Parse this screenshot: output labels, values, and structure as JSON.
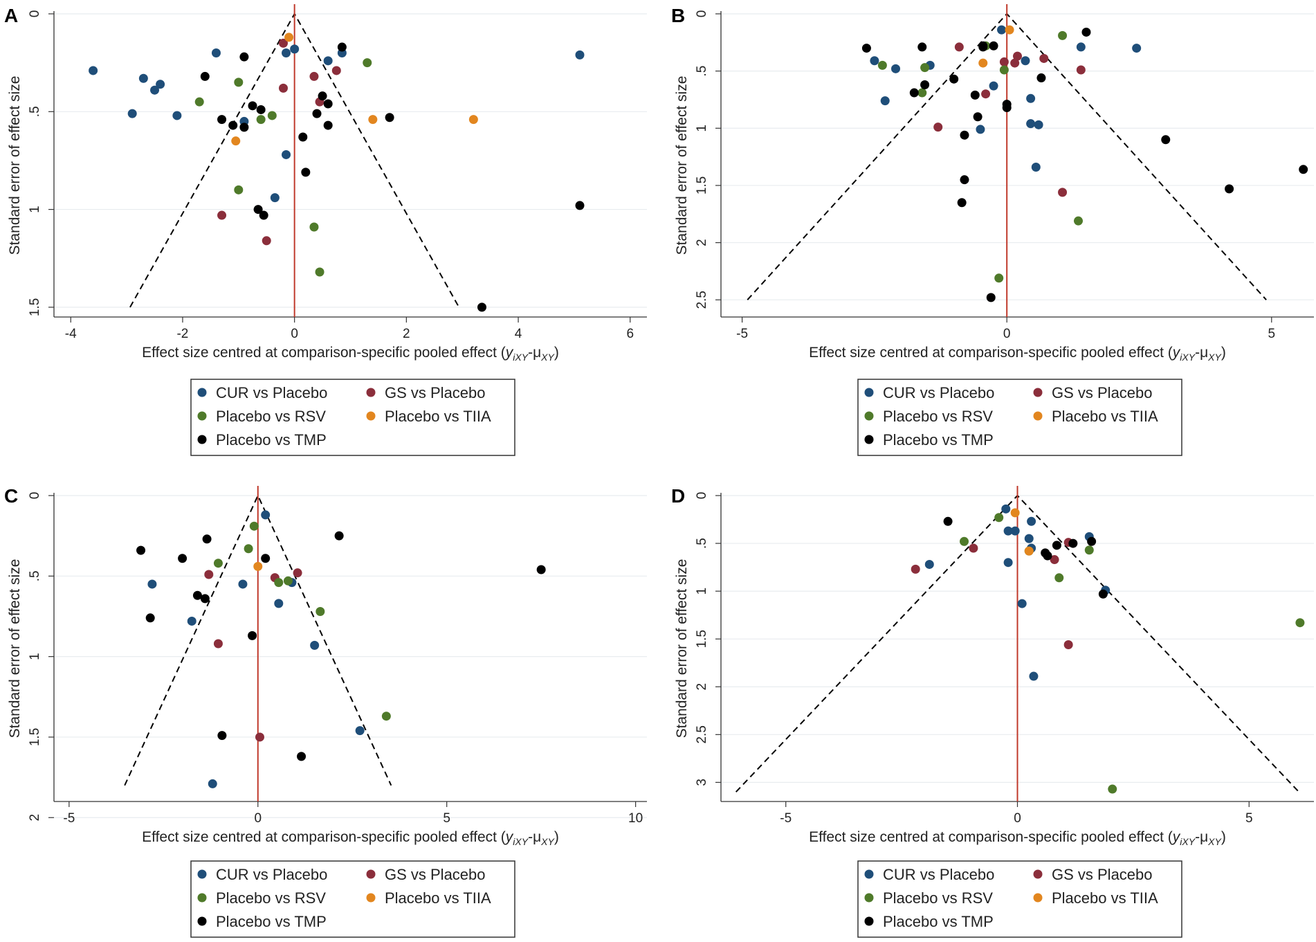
{
  "figure": {
    "colors": {
      "CUR vs Placebo": "#1f4e79",
      "GS vs Placebo": "#8b2e3b",
      "Placebo vs RSV": "#4f7a2a",
      "Placebo vs TIIA": "#e2861f",
      "Placebo vs TMP": "#000000",
      "null_line": "#c0392b",
      "funnel": "#000000"
    }
  },
  "chart_data": [
    {
      "panel": "A",
      "type": "scatter",
      "xlabel_main": "Effect size centred at comparison-specific pooled effect (",
      "xlabel_sym1": "y",
      "xlabel_sub1": "iXY",
      "xlabel_mid": "-μ",
      "xlabel_sub2": "XY",
      "xlabel_end": ")",
      "ylabel": "Standard error of effect size",
      "xlim": [
        -4.3,
        6.3
      ],
      "ylim": [
        0,
        1.55
      ],
      "xticks": [
        -4,
        -2,
        0,
        2,
        4,
        6
      ],
      "xtick_labels": [
        "-4",
        "-2",
        "0",
        "2",
        "4",
        "6"
      ],
      "yticks": [
        0,
        0.5,
        1,
        1.5
      ],
      "ytick_labels": [
        "0",
        ".5",
        "1",
        "1.5"
      ],
      "funnel_se_max": 1.5,
      "legend": [
        "CUR vs Placebo",
        "GS vs Placebo",
        "Placebo vs RSV",
        "Placebo vs TIIA",
        "Placebo vs TMP"
      ],
      "series": [
        {
          "name": "CUR vs Placebo",
          "points": [
            [
              -3.6,
              0.29
            ],
            [
              -2.7,
              0.33
            ],
            [
              -2.4,
              0.36
            ],
            [
              -2.5,
              0.39
            ],
            [
              -2.9,
              0.51
            ],
            [
              -2.1,
              0.52
            ],
            [
              -1.4,
              0.2
            ],
            [
              -0.9,
              0.55
            ],
            [
              -0.15,
              0.2
            ],
            [
              0.0,
              0.18
            ],
            [
              0.6,
              0.24
            ],
            [
              0.85,
              0.2
            ],
            [
              -0.15,
              0.72
            ],
            [
              -0.35,
              0.94
            ],
            [
              5.1,
              0.21
            ]
          ]
        },
        {
          "name": "GS vs Placebo",
          "points": [
            [
              -0.2,
              0.15
            ],
            [
              -0.2,
              0.38
            ],
            [
              0.35,
              0.32
            ],
            [
              0.45,
              0.45
            ],
            [
              0.75,
              0.29
            ],
            [
              -1.3,
              1.03
            ],
            [
              -0.5,
              1.16
            ]
          ]
        },
        {
          "name": "Placebo vs RSV",
          "points": [
            [
              -1.7,
              0.45
            ],
            [
              -1.0,
              0.35
            ],
            [
              -0.6,
              0.54
            ],
            [
              -0.4,
              0.52
            ],
            [
              1.3,
              0.25
            ],
            [
              -1.0,
              0.9
            ],
            [
              0.35,
              1.09
            ],
            [
              0.45,
              1.32
            ]
          ]
        },
        {
          "name": "Placebo vs TIIA",
          "points": [
            [
              -0.1,
              0.12
            ],
            [
              -1.05,
              0.65
            ],
            [
              1.4,
              0.54
            ],
            [
              3.2,
              0.54
            ]
          ]
        },
        {
          "name": "Placebo vs TMP",
          "points": [
            [
              -0.9,
              0.22
            ],
            [
              -1.6,
              0.32
            ],
            [
              -1.3,
              0.54
            ],
            [
              -1.1,
              0.57
            ],
            [
              -0.9,
              0.58
            ],
            [
              -0.75,
              0.47
            ],
            [
              -0.6,
              0.49
            ],
            [
              0.85,
              0.17
            ],
            [
              0.5,
              0.42
            ],
            [
              0.6,
              0.46
            ],
            [
              0.4,
              0.51
            ],
            [
              0.6,
              0.57
            ],
            [
              1.7,
              0.53
            ],
            [
              0.15,
              0.63
            ],
            [
              0.2,
              0.81
            ],
            [
              -0.65,
              1.0
            ],
            [
              -0.55,
              1.03
            ],
            [
              5.1,
              0.98
            ],
            [
              3.35,
              1.5
            ]
          ]
        }
      ]
    },
    {
      "panel": "B",
      "type": "scatter",
      "xlabel_main": "Effect size centred at comparison-specific pooled effect (",
      "xlabel_sym1": "y",
      "xlabel_sub1": "iXY",
      "xlabel_mid": "-μ",
      "xlabel_sub2": "XY",
      "xlabel_end": ")",
      "ylabel": "Standard error of effect size",
      "xlim": [
        -5.4,
        5.8
      ],
      "ylim": [
        0,
        2.65
      ],
      "xticks": [
        -5,
        0,
        5
      ],
      "xtick_labels": [
        "-5",
        "0",
        "5"
      ],
      "yticks": [
        0,
        0.5,
        1,
        1.5,
        2,
        2.5
      ],
      "ytick_labels": [
        "0",
        ".5",
        "1",
        "1.5",
        "2",
        "2.5"
      ],
      "funnel_se_max": 2.5,
      "legend": [
        "CUR vs Placebo",
        "GS vs Placebo",
        "Placebo vs RSV",
        "Placebo vs TIIA",
        "Placebo vs TMP"
      ],
      "series": [
        {
          "name": "CUR vs Placebo",
          "points": [
            [
              -2.5,
              0.41
            ],
            [
              -2.1,
              0.48
            ],
            [
              -1.45,
              0.45
            ],
            [
              -2.3,
              0.76
            ],
            [
              -0.1,
              0.14
            ],
            [
              -0.25,
              0.63
            ],
            [
              -0.5,
              1.01
            ],
            [
              0.35,
              0.41
            ],
            [
              0.45,
              0.74
            ],
            [
              0.45,
              0.96
            ],
            [
              0.6,
              0.97
            ],
            [
              0.55,
              1.34
            ],
            [
              1.4,
              0.29
            ],
            [
              2.45,
              0.3
            ]
          ]
        },
        {
          "name": "GS vs Placebo",
          "points": [
            [
              -0.9,
              0.29
            ],
            [
              0.2,
              0.37
            ],
            [
              0.15,
              0.43
            ],
            [
              -0.05,
              0.42
            ],
            [
              0.7,
              0.39
            ],
            [
              1.4,
              0.49
            ],
            [
              -0.4,
              0.7
            ],
            [
              -1.3,
              0.99
            ],
            [
              1.05,
              1.56
            ]
          ]
        },
        {
          "name": "Placebo vs RSV",
          "points": [
            [
              -2.35,
              0.45
            ],
            [
              -0.4,
              0.28
            ],
            [
              -1.55,
              0.47
            ],
            [
              -1.6,
              0.69
            ],
            [
              1.05,
              0.19
            ],
            [
              -0.05,
              0.49
            ],
            [
              1.35,
              1.81
            ],
            [
              -0.15,
              2.31
            ]
          ]
        },
        {
          "name": "Placebo vs TIIA",
          "points": [
            [
              0.05,
              0.14
            ],
            [
              -0.45,
              0.43
            ]
          ]
        },
        {
          "name": "Placebo vs TMP",
          "points": [
            [
              -2.65,
              0.3
            ],
            [
              -1.6,
              0.29
            ],
            [
              -0.25,
              0.28
            ],
            [
              -0.45,
              0.29
            ],
            [
              -1.55,
              0.62
            ],
            [
              -1.0,
              0.57
            ],
            [
              -1.75,
              0.69
            ],
            [
              -0.6,
              0.71
            ],
            [
              -0.55,
              0.9
            ],
            [
              -0.45,
              0.28
            ],
            [
              0.0,
              0.82
            ],
            [
              -0.8,
              1.06
            ],
            [
              0.0,
              0.79
            ],
            [
              0.65,
              0.56
            ],
            [
              1.5,
              0.16
            ],
            [
              3.0,
              1.1
            ],
            [
              -0.8,
              1.45
            ],
            [
              -0.85,
              1.65
            ],
            [
              4.2,
              1.53
            ],
            [
              5.6,
              1.36
            ],
            [
              -0.3,
              2.48
            ]
          ]
        }
      ]
    },
    {
      "panel": "C",
      "type": "scatter",
      "xlabel_main": "Effect size centred at comparison-specific pooled effect (",
      "xlabel_sym1": "y",
      "xlabel_sub1": "iXY",
      "xlabel_mid": "-μ",
      "xlabel_sub2": "XY",
      "xlabel_end": ")",
      "ylabel": "Standard error of effect size",
      "xlim": [
        -5.4,
        10.3
      ],
      "ylim": [
        0,
        1.9
      ],
      "xticks": [
        -5,
        0,
        5,
        10
      ],
      "xtick_labels": [
        "-5",
        "0",
        "5",
        "10"
      ],
      "yticks": [
        0,
        0.5,
        1,
        1.5,
        2
      ],
      "ytick_labels": [
        "0",
        ".5",
        "1",
        "1.5",
        "2"
      ],
      "funnel_se_max": 1.8,
      "legend": [
        "CUR vs Placebo",
        "GS vs Placebo",
        "Placebo vs RSV",
        "Placebo vs TIIA",
        "Placebo vs TMP"
      ],
      "series": [
        {
          "name": "CUR vs Placebo",
          "points": [
            [
              0.2,
              0.12
            ],
            [
              -2.8,
              0.55
            ],
            [
              -0.4,
              0.55
            ],
            [
              0.9,
              0.54
            ],
            [
              0.55,
              0.67
            ],
            [
              -1.75,
              0.78
            ],
            [
              1.5,
              0.93
            ],
            [
              2.7,
              1.46
            ],
            [
              -1.2,
              1.79
            ]
          ]
        },
        {
          "name": "GS vs Placebo",
          "points": [
            [
              -1.3,
              0.49
            ],
            [
              -1.05,
              0.92
            ],
            [
              0.45,
              0.51
            ],
            [
              1.05,
              0.48
            ],
            [
              0.05,
              1.5
            ]
          ]
        },
        {
          "name": "Placebo vs RSV",
          "points": [
            [
              -0.1,
              0.19
            ],
            [
              -0.25,
              0.33
            ],
            [
              -1.05,
              0.42
            ],
            [
              0.55,
              0.54
            ],
            [
              0.8,
              0.53
            ],
            [
              1.65,
              0.72
            ],
            [
              3.4,
              1.37
            ]
          ]
        },
        {
          "name": "Placebo vs TIIA",
          "points": [
            [
              0.0,
              0.44
            ]
          ]
        },
        {
          "name": "Placebo vs TMP",
          "points": [
            [
              -3.1,
              0.34
            ],
            [
              -1.35,
              0.27
            ],
            [
              -2.0,
              0.39
            ],
            [
              -1.6,
              0.62
            ],
            [
              -1.4,
              0.64
            ],
            [
              -2.85,
              0.76
            ],
            [
              0.2,
              0.39
            ],
            [
              2.15,
              0.25
            ],
            [
              7.5,
              0.46
            ],
            [
              -0.15,
              0.87
            ],
            [
              -0.95,
              1.49
            ],
            [
              1.15,
              1.62
            ]
          ]
        }
      ]
    },
    {
      "panel": "D",
      "type": "scatter",
      "xlabel_main": "Effect size centred at comparison-specific pooled effect (",
      "xlabel_sym1": "y",
      "xlabel_sub1": "iXY",
      "xlabel_mid": "-μ",
      "xlabel_sub2": "XY",
      "xlabel_end": ")",
      "ylabel": "Standard error of effect size",
      "xlim": [
        -6.4,
        6.4
      ],
      "ylim": [
        0,
        3.2
      ],
      "xticks": [
        -5,
        0,
        5
      ],
      "xtick_labels": [
        "-5",
        "0",
        "5"
      ],
      "yticks": [
        0,
        0.5,
        1,
        1.5,
        2,
        2.5,
        3
      ],
      "ytick_labels": [
        "0",
        ".5",
        "1",
        "1.5",
        "2",
        "2.5",
        "3"
      ],
      "funnel_se_max": 3.1,
      "legend": [
        "CUR vs Placebo",
        "GS vs Placebo",
        "Placebo vs RSV",
        "Placebo vs TIIA",
        "Placebo vs TMP"
      ],
      "series": [
        {
          "name": "CUR vs Placebo",
          "points": [
            [
              -0.25,
              0.14
            ],
            [
              -0.2,
              0.37
            ],
            [
              -0.05,
              0.37
            ],
            [
              0.3,
              0.27
            ],
            [
              0.25,
              0.45
            ],
            [
              0.3,
              0.55
            ],
            [
              -0.2,
              0.7
            ],
            [
              0.1,
              1.13
            ],
            [
              1.55,
              0.43
            ],
            [
              1.9,
              0.99
            ],
            [
              -1.9,
              0.72
            ],
            [
              0.35,
              1.89
            ]
          ]
        },
        {
          "name": "GS vs Placebo",
          "points": [
            [
              -2.2,
              0.77
            ],
            [
              -0.95,
              0.55
            ],
            [
              0.8,
              0.67
            ],
            [
              1.1,
              0.49
            ],
            [
              1.1,
              1.56
            ]
          ]
        },
        {
          "name": "Placebo vs RSV",
          "points": [
            [
              -0.4,
              0.23
            ],
            [
              -1.15,
              0.48
            ],
            [
              0.25,
              0.58
            ],
            [
              0.9,
              0.86
            ],
            [
              1.55,
              0.57
            ],
            [
              6.1,
              1.33
            ],
            [
              2.05,
              3.07
            ]
          ]
        },
        {
          "name": "Placebo vs TIIA",
          "points": [
            [
              -0.05,
              0.18
            ],
            [
              0.25,
              0.58
            ]
          ]
        },
        {
          "name": "Placebo vs TMP",
          "points": [
            [
              -1.5,
              0.27
            ],
            [
              0.6,
              0.6
            ],
            [
              0.65,
              0.63
            ],
            [
              0.85,
              0.52
            ],
            [
              1.2,
              0.5
            ],
            [
              1.6,
              0.48
            ],
            [
              1.85,
              1.03
            ]
          ]
        }
      ]
    }
  ]
}
